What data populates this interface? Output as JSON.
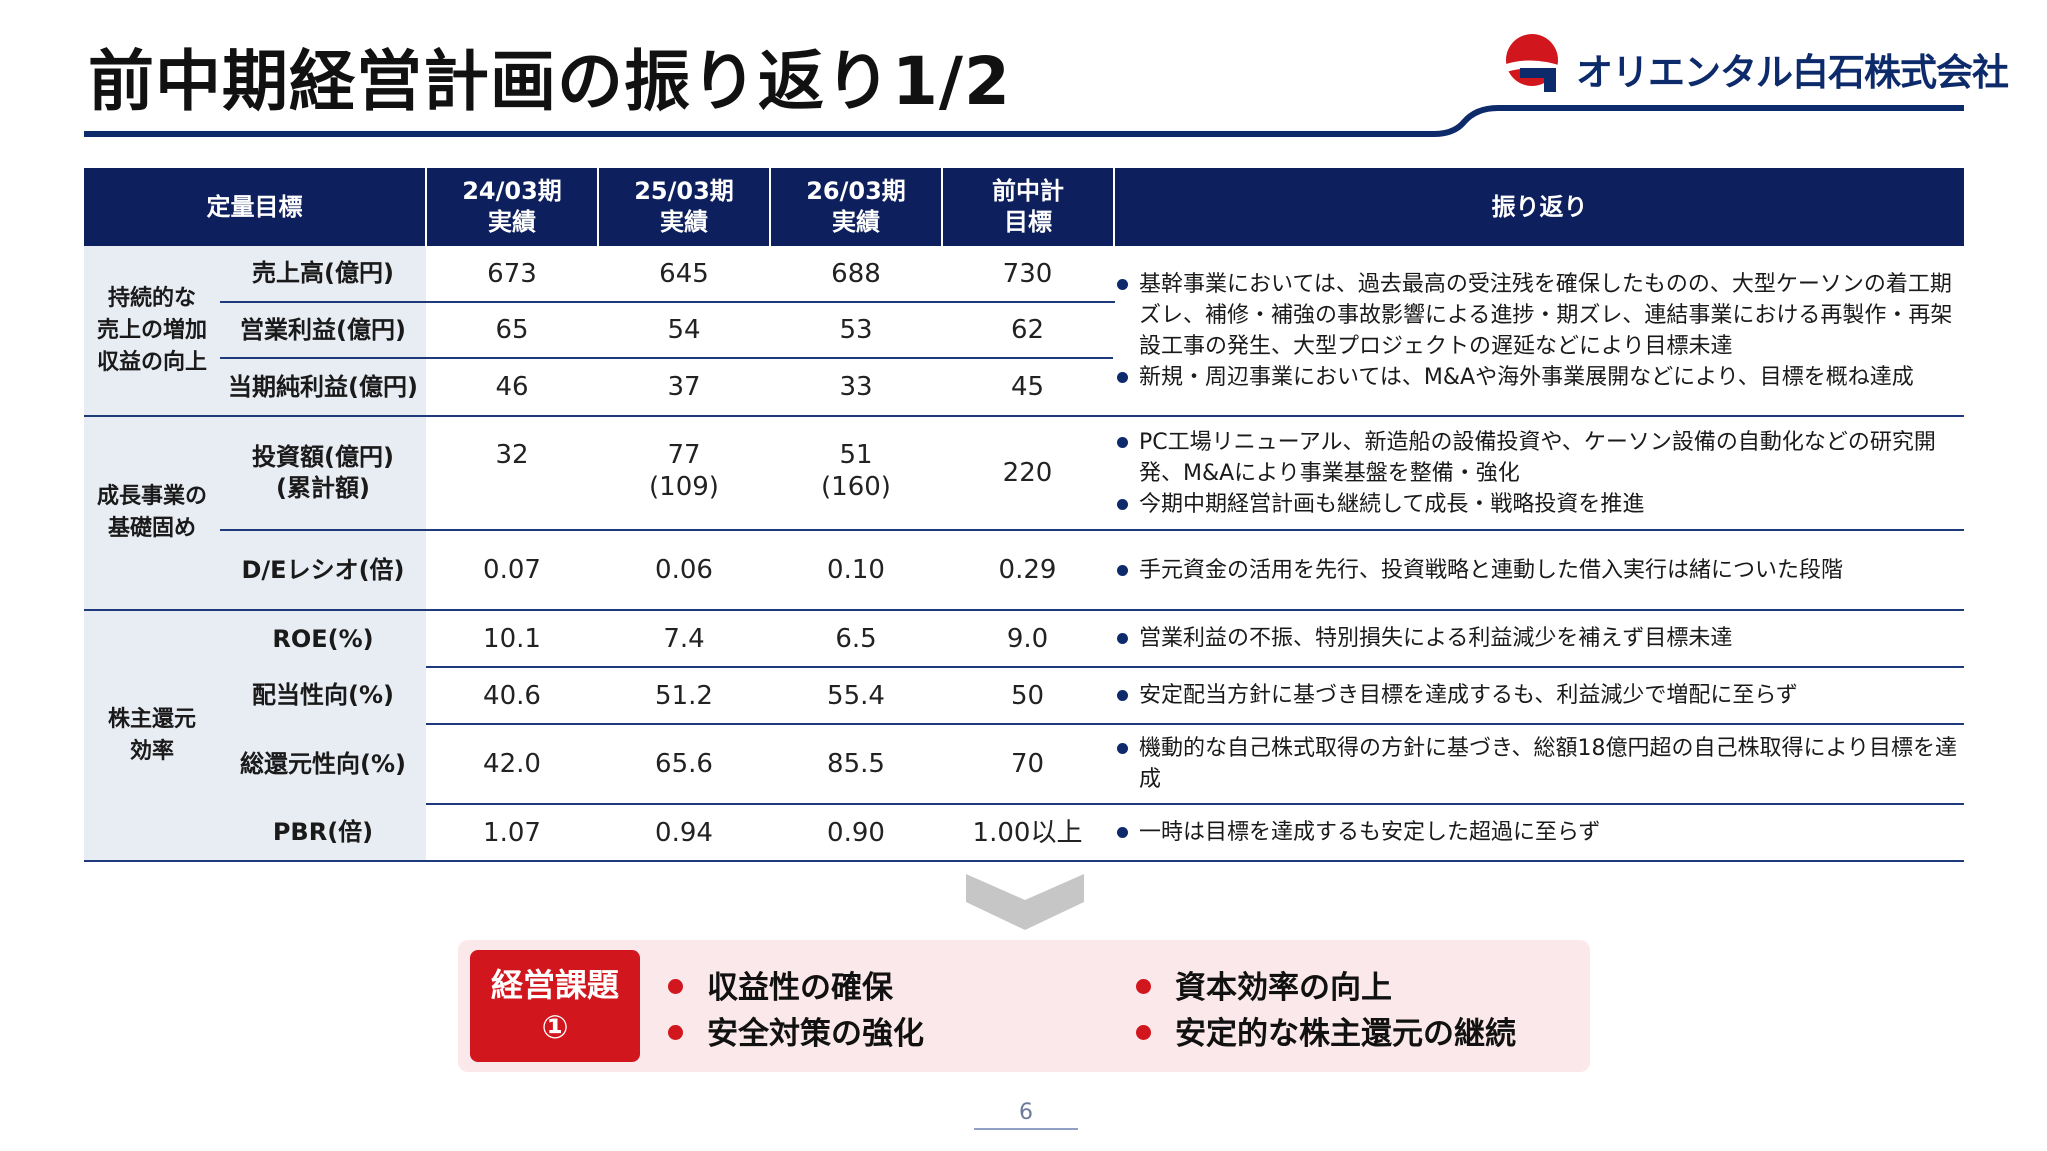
{
  "title": "前中期経営計画の振り返り1/2",
  "logo": {
    "company": "オリエンタル白石株式会社"
  },
  "colors": {
    "navy": "#0d1f5c",
    "accent_red": "#d2161e",
    "light_row": "#e8ecf3",
    "pink_box": "#fbe8ea"
  },
  "table": {
    "headers": {
      "target": "定量目標",
      "fy24": [
        "24/03期",
        "実績"
      ],
      "fy25": [
        "25/03期",
        "実績"
      ],
      "fy26": [
        "26/03期",
        "実績"
      ],
      "goal": [
        "前中計",
        "目標"
      ],
      "review": "振り返り"
    },
    "groups": {
      "g1": [
        "持続的な",
        "売上の増加",
        "収益の向上"
      ],
      "g2": [
        "成長事業の",
        "基礎固め"
      ],
      "g3": [
        "株主還元",
        "効率"
      ]
    },
    "rows": {
      "sales": {
        "label": "売上高(億円)",
        "fy24": "673",
        "fy25": "645",
        "fy26": "688",
        "goal": "730"
      },
      "op_profit": {
        "label": "営業利益(億円)",
        "fy24": "65",
        "fy25": "54",
        "fy26": "53",
        "goal": "62"
      },
      "net_profit": {
        "label": "当期純利益(億円)",
        "fy24": "46",
        "fy25": "37",
        "fy26": "33",
        "goal": "45"
      },
      "investment": {
        "label": [
          "投資額(億円)",
          "(累計額)"
        ],
        "fy24": "32",
        "fy25": [
          "77",
          "(109)"
        ],
        "fy26": [
          "51",
          "(160)"
        ],
        "goal": "220"
      },
      "de_ratio": {
        "label": "D/Eレシオ(倍)",
        "fy24": "0.07",
        "fy25": "0.06",
        "fy26": "0.10",
        "goal": "0.29"
      },
      "roe": {
        "label": "ROE(%)",
        "fy24": "10.1",
        "fy25": "7.4",
        "fy26": "6.5",
        "goal": "9.0"
      },
      "payout": {
        "label": "配当性向(%)",
        "fy24": "40.6",
        "fy25": "51.2",
        "fy26": "55.4",
        "goal": "50"
      },
      "total_return": {
        "label": "総還元性向(%)",
        "fy24": "42.0",
        "fy25": "65.6",
        "fy26": "85.5",
        "goal": "70"
      },
      "pbr": {
        "label": "PBR(倍)",
        "fy24": "1.07",
        "fy25": "0.94",
        "fy26": "0.90",
        "goal": "1.00以上"
      }
    },
    "reviews": {
      "g1": [
        "基幹事業においては、過去最高の受注残を確保したものの、大型ケーソンの着工期ズレ、補修・補強の事故影響による進捗・期ズレ、連結事業における再製作・再架設工事の発生、大型プロジェクトの遅延などにより目標未達",
        "新規・周辺事業においては、M&Aや海外事業展開などにより、目標を概ね達成"
      ],
      "investment": [
        "PC工場リニューアル、新造船の設備投資や、ケーソン設備の自動化などの研究開発、M&Aにより事業基盤を整備・強化",
        "今期中期経営計画も継続して成長・戦略投資を推進"
      ],
      "de_ratio": [
        "手元資金の活用を先行、投資戦略と連動した借入実行は緒についた段階"
      ],
      "roe": [
        "営業利益の不振、特別損失による利益減少を補えず目標未達"
      ],
      "payout": [
        "安定配当方針に基づき目標を達成するも、利益減少で増配に至らず"
      ],
      "total_return": [
        "機動的な自己株式取得の方針に基づき、総額18億円超の自己株取得により目標を達成"
      ],
      "pbr": [
        "一時は目標を達成するも安定した超過に至らず"
      ]
    }
  },
  "issues": {
    "label": [
      "経営課題",
      "①"
    ],
    "items": [
      "収益性の確保",
      "資本効率の向上",
      "安全対策の強化",
      "安定的な株主還元の継続"
    ]
  },
  "page_number": "6"
}
